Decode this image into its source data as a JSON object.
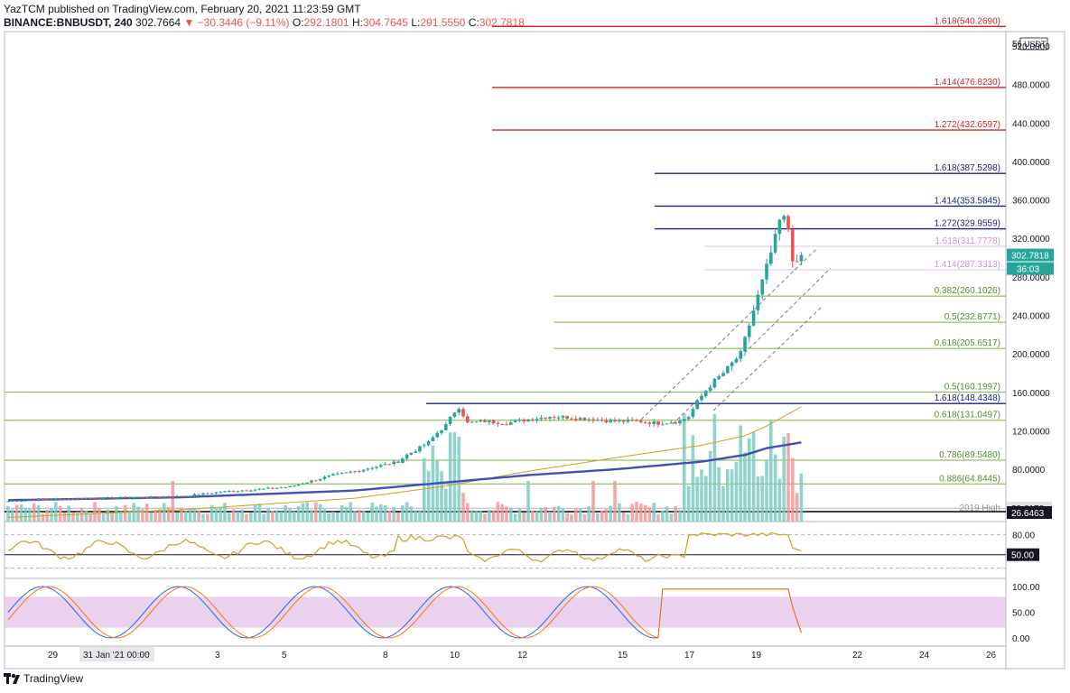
{
  "header": {
    "published": "YazTCM published on TradingView.com, February 20, 2021 11:23:59 GMT",
    "symbol": "BINANCE:BNBUSDT, 240",
    "last": "302.7664",
    "change": "−30.3446 (−9.11%)",
    "o_label": "O:",
    "o": "292.1801",
    "h_label": "H:",
    "h": "304.7645",
    "l_label": "L:",
    "l": "291.5550",
    "c_label": "C:",
    "c": "302.7818"
  },
  "footer": {
    "brand": "TradingView"
  },
  "colors": {
    "up": "#26a69a",
    "down": "#ef5350",
    "red_line": "#c62828",
    "blue_line": "#1a237e",
    "green_line": "#7cb342",
    "pink_line": "#e1bee7",
    "ma_long": "#3f51b5",
    "ma_short": "#c9a227",
    "rsi": "#c9a227",
    "stoch_k": "#2962ff",
    "stoch_d": "#f57c00",
    "stoch_band": "#e1bee7"
  },
  "chart_data": {
    "type": "candlestick",
    "currency": "USDT",
    "y_ticks": [
      "520.0000",
      "480.0000",
      "440.0000",
      "400.0000",
      "360.0000",
      "320.0000",
      "280.0000",
      "240.0000",
      "200.0000",
      "160.0000",
      "120.0000",
      "80.0000"
    ],
    "y_top_label": "56",
    "y_unit_label": "USDT",
    "x_ticks": [
      "29",
      "31 Jan '21   00:00",
      "3",
      "5",
      "8",
      "10",
      "12",
      "15",
      "17",
      "19",
      "22",
      "24",
      "26"
    ],
    "price_badge": "302.7818",
    "countdown_badge": "36:03",
    "level_2019_label": "2019 High",
    "level_2019_value": "39.6178",
    "level_low_value": "26.6463",
    "fib_levels": [
      {
        "label": "1.618(540.2690)",
        "value": 540.269,
        "style": "red"
      },
      {
        "label": "1.414(476.8230)",
        "value": 476.823,
        "style": "red"
      },
      {
        "label": "1.272(432.6597)",
        "value": 432.6597,
        "style": "red"
      },
      {
        "label": "1.618(387.5298)",
        "value": 387.5298,
        "style": "blue"
      },
      {
        "label": "1.414(353.5845)",
        "value": 353.5845,
        "style": "blue"
      },
      {
        "label": "1.272(329.9559)",
        "value": 329.9559,
        "style": "blue"
      },
      {
        "label": "1.618(311.7778)",
        "value": 311.7778,
        "style": "pink"
      },
      {
        "label": "1.414(287.3313)",
        "value": 287.3313,
        "style": "pink"
      },
      {
        "label": "0.382(260.1026)",
        "value": 260.1026,
        "style": "green"
      },
      {
        "label": "0.5(232.8771)",
        "value": 232.8771,
        "style": "green"
      },
      {
        "label": "0.618(205.6517)",
        "value": 205.6517,
        "style": "green"
      },
      {
        "label": "0.5(160.1997)",
        "value": 160.1997,
        "style": "green"
      },
      {
        "label": "1.618(148.4348)",
        "value": 148.4348,
        "style": "blue"
      },
      {
        "label": "0.618(131.0497)",
        "value": 131.0497,
        "style": "green"
      },
      {
        "label": "0.786(89.5480)",
        "value": 89.548,
        "style": "green"
      },
      {
        "label": "0.886(64.8445)",
        "value": 64.8445,
        "style": "green"
      }
    ],
    "candles_keypoints": [
      [
        0,
        47
      ],
      [
        10,
        49
      ],
      [
        20,
        50
      ],
      [
        40,
        52
      ],
      [
        50,
        57
      ],
      [
        60,
        60
      ],
      [
        65,
        62
      ],
      [
        70,
        68
      ],
      [
        75,
        74
      ],
      [
        80,
        78
      ],
      [
        85,
        83
      ],
      [
        90,
        88
      ],
      [
        92,
        95
      ],
      [
        94,
        100
      ],
      [
        97,
        108
      ],
      [
        99,
        118
      ],
      [
        101,
        126
      ],
      [
        103,
        140
      ],
      [
        104,
        145
      ],
      [
        106,
        128
      ],
      [
        110,
        130
      ],
      [
        115,
        128
      ],
      [
        120,
        132
      ],
      [
        125,
        135
      ],
      [
        130,
        134
      ],
      [
        135,
        132
      ],
      [
        140,
        130
      ],
      [
        145,
        130
      ],
      [
        150,
        128
      ],
      [
        155,
        130
      ],
      [
        157,
        135
      ],
      [
        159,
        150
      ],
      [
        161,
        162
      ],
      [
        163,
        172
      ],
      [
        165,
        180
      ],
      [
        167,
        190
      ],
      [
        169,
        200
      ],
      [
        171,
        230
      ],
      [
        173,
        260
      ],
      [
        175,
        290
      ],
      [
        177,
        320
      ],
      [
        178,
        338
      ],
      [
        179,
        340
      ],
      [
        180,
        330
      ],
      [
        181,
        300
      ],
      [
        182,
        292
      ],
      [
        183,
        302.7818
      ]
    ],
    "ma_short_keypoints": [
      [
        0,
        30
      ],
      [
        40,
        38
      ],
      [
        80,
        50
      ],
      [
        100,
        62
      ],
      [
        120,
        78
      ],
      [
        140,
        92
      ],
      [
        160,
        105
      ],
      [
        170,
        115
      ],
      [
        175,
        125
      ],
      [
        183,
        145
      ]
    ],
    "ma_long_keypoints": [
      [
        0,
        48
      ],
      [
        40,
        51
      ],
      [
        80,
        58
      ],
      [
        100,
        66
      ],
      [
        120,
        74
      ],
      [
        140,
        80
      ],
      [
        160,
        88
      ],
      [
        170,
        95
      ],
      [
        175,
        102
      ],
      [
        183,
        108
      ]
    ],
    "rsi": {
      "ticks": [
        "80.00",
        "50.00"
      ],
      "current": "50.00"
    },
    "stoch": {
      "ticks": [
        "100.00",
        "50.00",
        "0.00"
      ]
    }
  }
}
